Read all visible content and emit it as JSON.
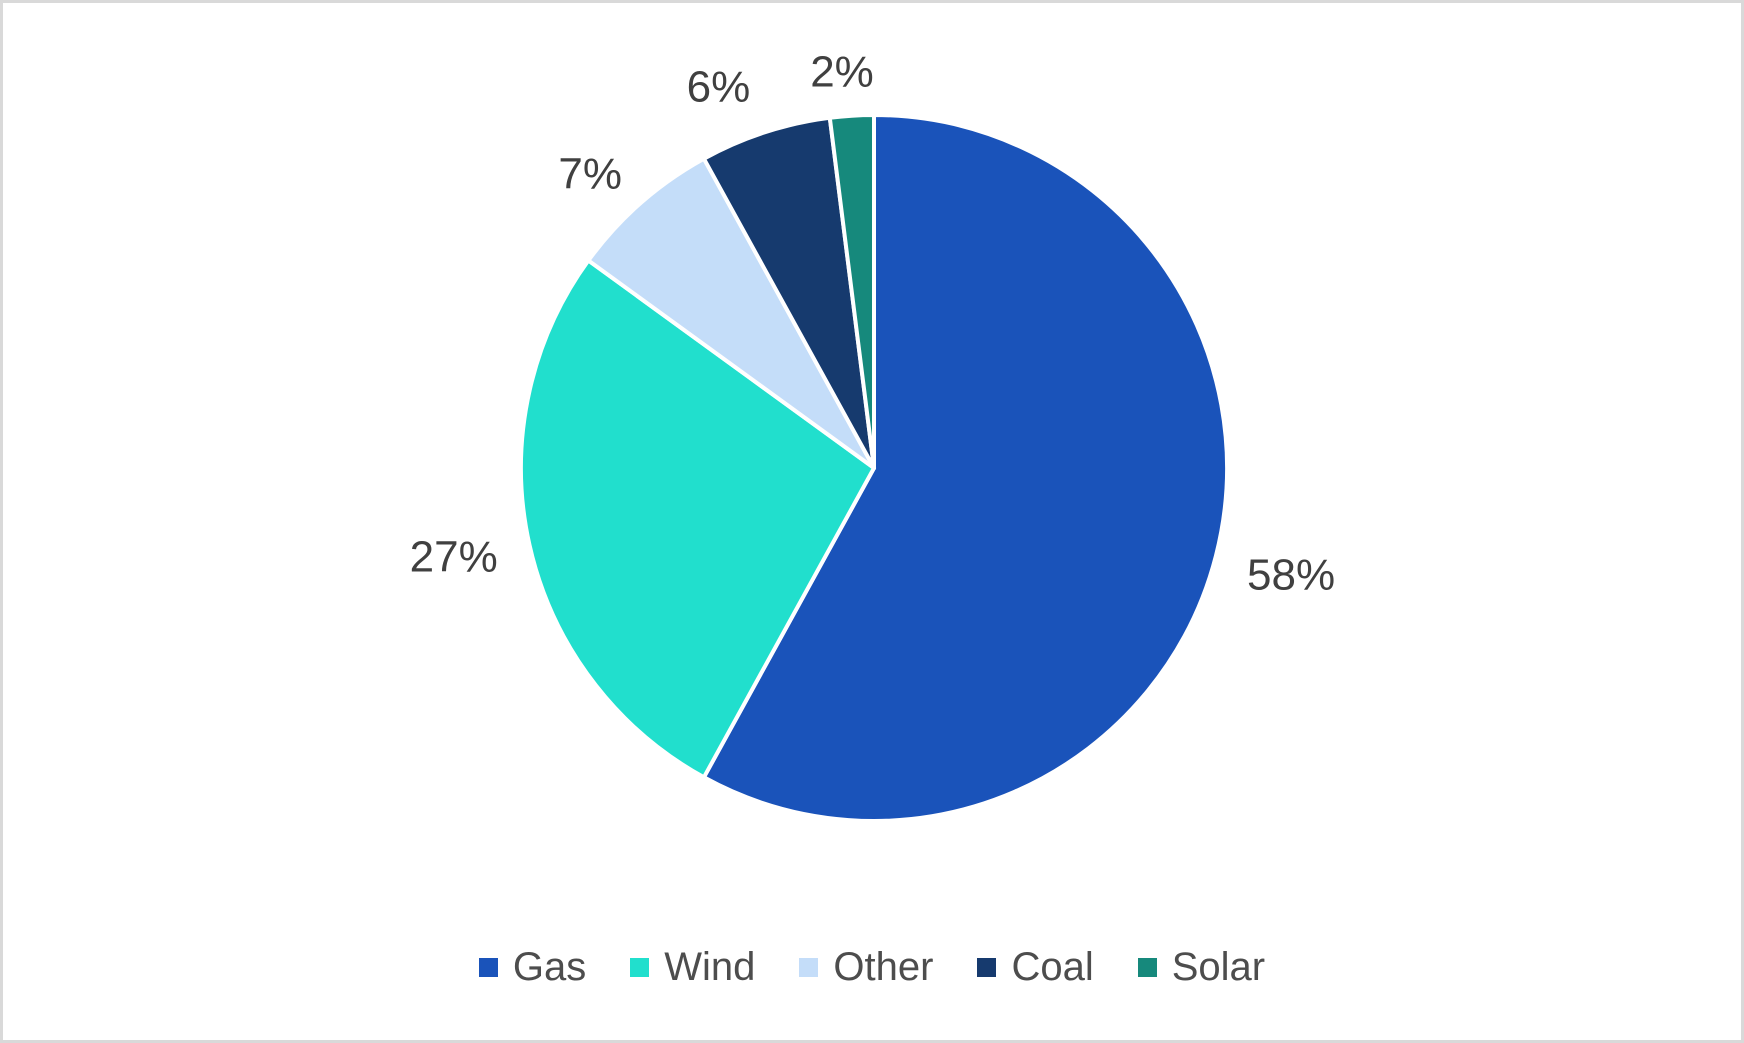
{
  "canvas": {
    "background_color": "#FFFFFF",
    "frame_border_color": "#D9D9D9"
  },
  "chart_data": {
    "type": "pie",
    "title": "",
    "categories": [
      "Gas",
      "Wind",
      "Other",
      "Coal",
      "Solar"
    ],
    "values": [
      58,
      27,
      7,
      6,
      2
    ],
    "data_labels": [
      "58%",
      "27%",
      "7%",
      "6%",
      "2%"
    ],
    "colors": [
      "#1A53BA",
      "#21DFCD",
      "#C4DDF9",
      "#163A6E",
      "#16897C"
    ],
    "slice_border_color": "#FFFFFF",
    "label_color": "#404040",
    "legend_text_color": "#4D4D4D",
    "legend_position": "bottom",
    "start_angle_deg": 0,
    "direction": "clockwise",
    "grid": "off"
  }
}
